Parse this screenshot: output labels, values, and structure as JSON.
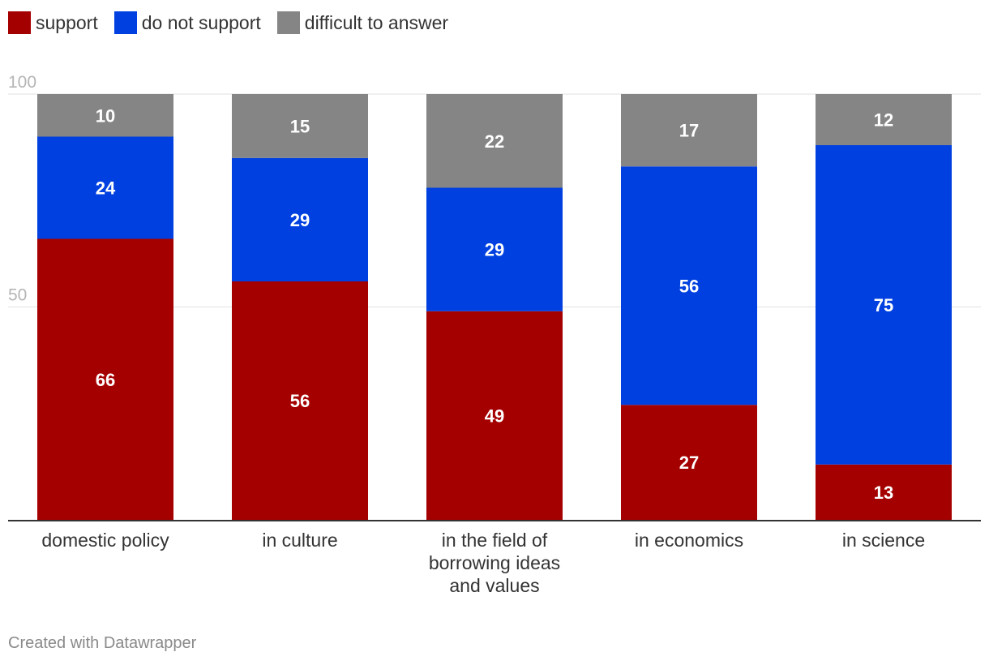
{
  "chart_data": {
    "type": "bar",
    "stacked": true,
    "categories": [
      "domestic policy",
      "in culture",
      "in the field of borrowing ideas and values",
      "in economics",
      "in science"
    ],
    "series": [
      {
        "name": "support",
        "color": "#a50000",
        "values": [
          66,
          56,
          49,
          27,
          13
        ]
      },
      {
        "name": "do not support",
        "color": "#0040e0",
        "values": [
          24,
          29,
          29,
          56,
          75
        ]
      },
      {
        "name": "difficult to answer",
        "color": "#858585",
        "values": [
          10,
          15,
          22,
          17,
          12
        ]
      }
    ],
    "y_ticks": [
      "100",
      "50"
    ],
    "ylim": [
      0,
      100
    ],
    "grid": true,
    "legend_position": "top-left"
  },
  "footer": {
    "credit": "Created with Datawrapper"
  }
}
